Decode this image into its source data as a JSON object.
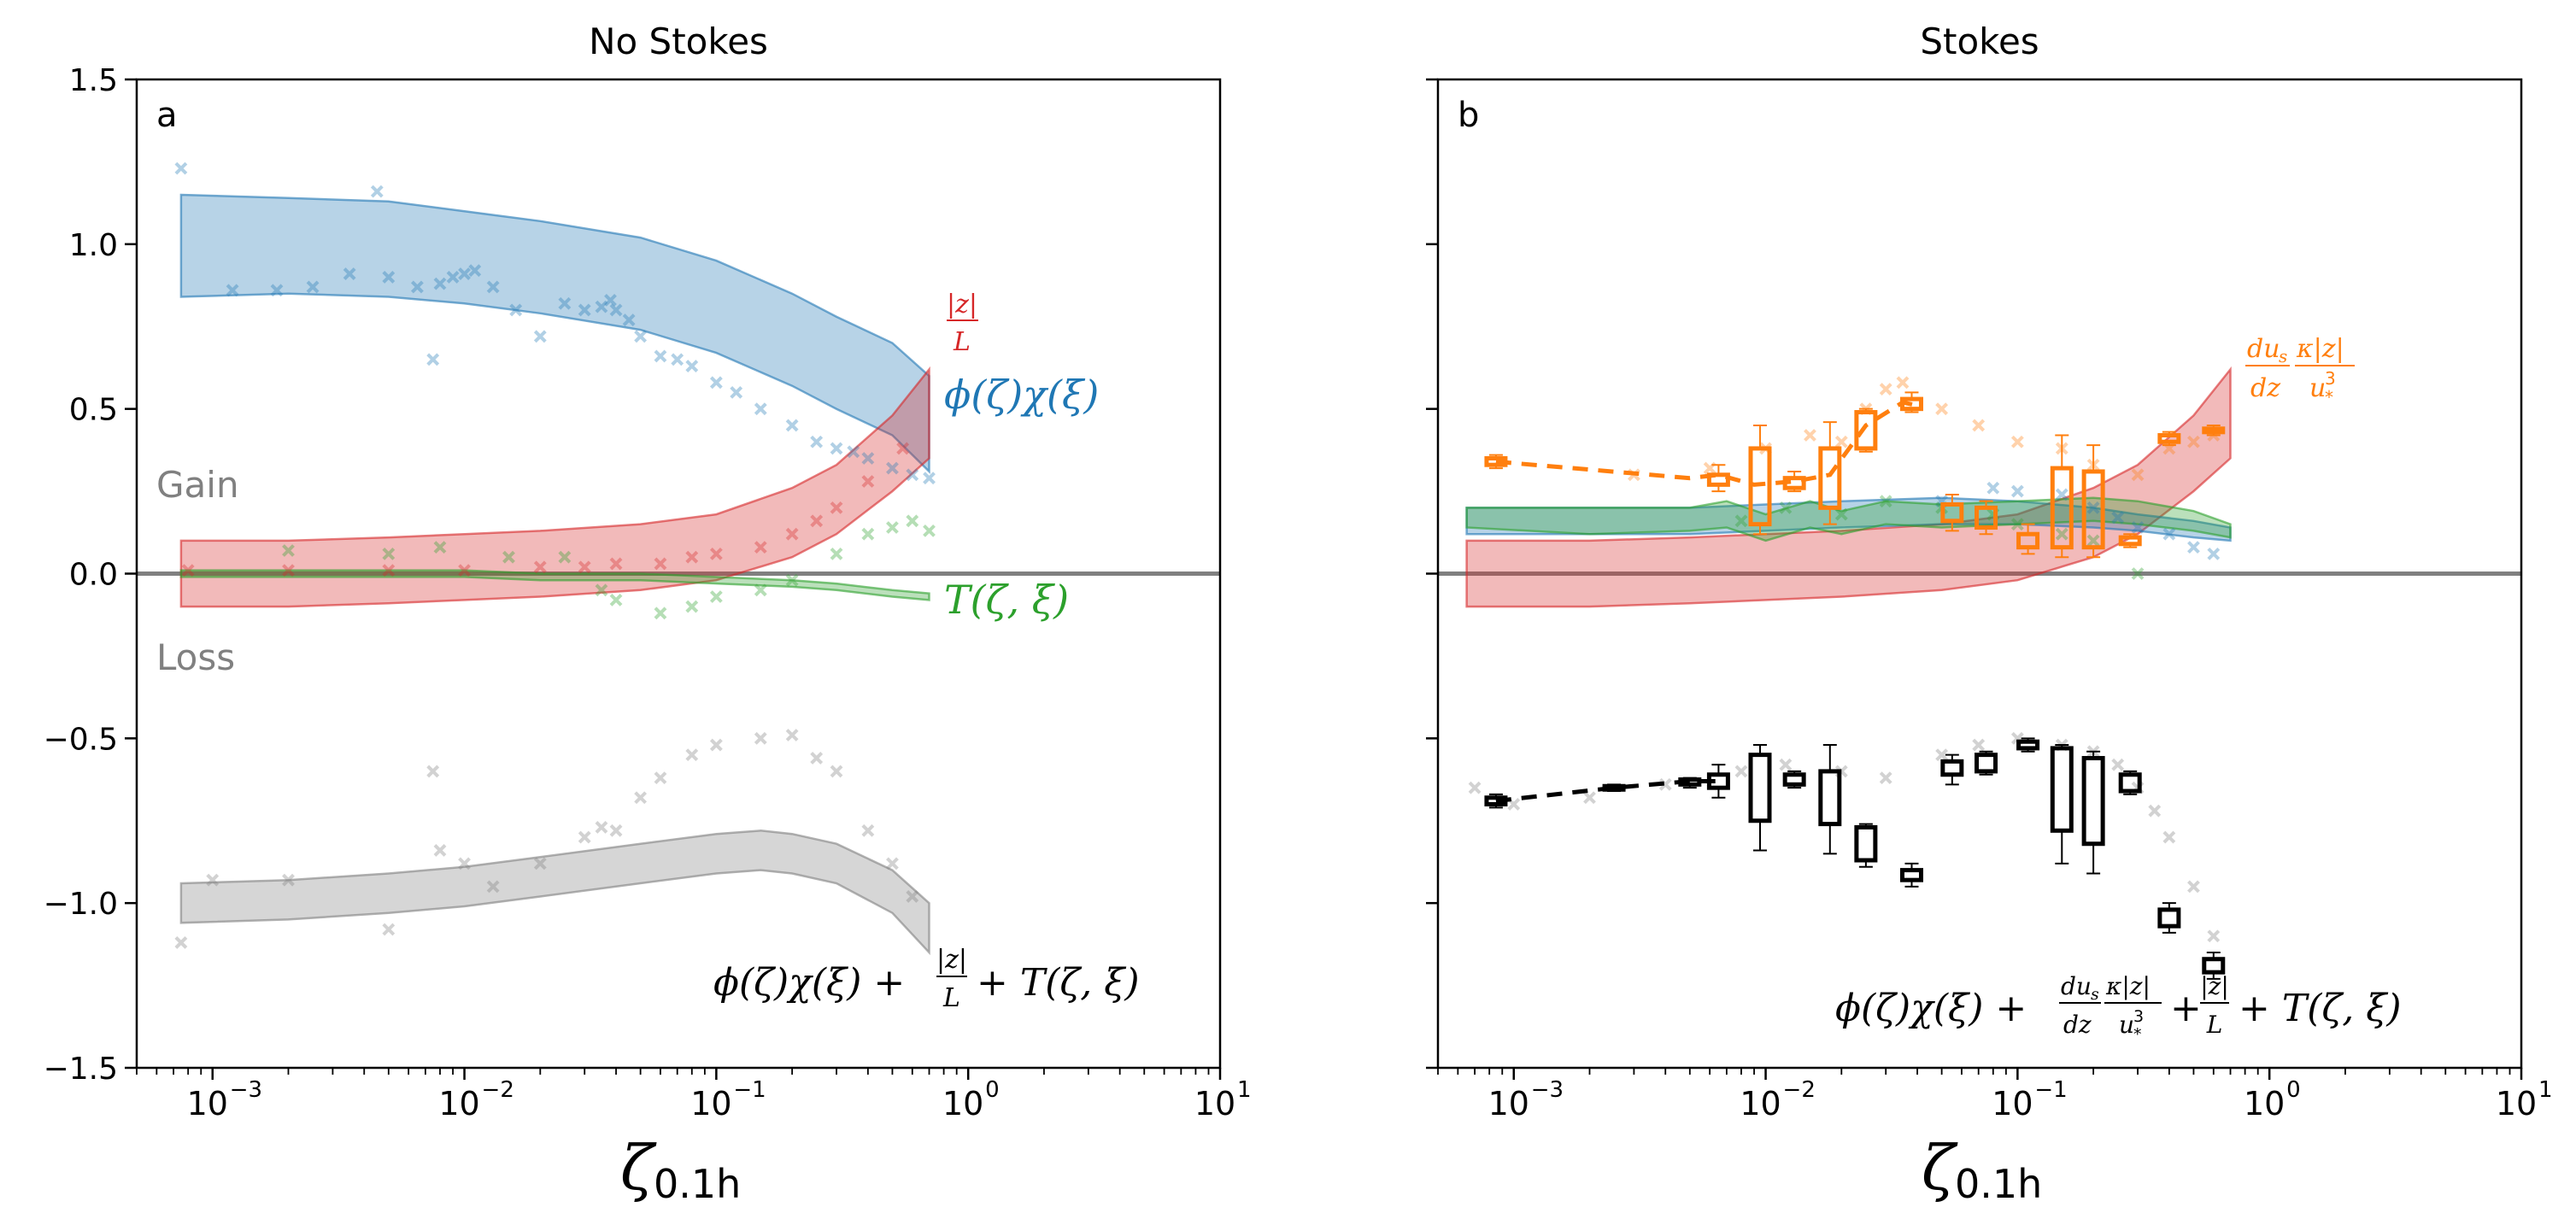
{
  "chart_data": [
    {
      "type": "scatter",
      "panel_letter": "a",
      "title": "No Stokes",
      "xlabel": "ζ",
      "xlabel_sub": "0.1h",
      "xscale": "log",
      "xlim": [
        0.0005,
        10
      ],
      "ylim": [
        -1.5,
        1.5
      ],
      "xticks": [
        0.001,
        0.01,
        0.1,
        1,
        10
      ],
      "xticklabels_base": [
        "10",
        "10",
        "10",
        "10",
        "10"
      ],
      "xticklabels_exp": [
        "−3",
        "−2",
        "−1",
        "0",
        "1"
      ],
      "yticks": [
        -1.5,
        -1.0,
        -0.5,
        0.0,
        0.5,
        1.0,
        1.5
      ],
      "yticklabels": [
        "−1.5",
        "−1.0",
        "−0.5",
        "0.0",
        "0.5",
        "1.0",
        "1.5"
      ],
      "gain_label": "Gain",
      "loss_label": "Loss",
      "series": [
        {
          "name": "ϕ(ζ)χ(ξ)",
          "color": "#1f77b4",
          "band_x": [
            0.00075,
            0.002,
            0.005,
            0.01,
            0.02,
            0.05,
            0.1,
            0.2,
            0.3,
            0.5,
            0.7
          ],
          "band_lower": [
            0.84,
            0.85,
            0.84,
            0.82,
            0.79,
            0.74,
            0.67,
            0.57,
            0.5,
            0.42,
            0.31
          ],
          "band_upper": [
            1.15,
            1.14,
            1.13,
            1.1,
            1.07,
            1.02,
            0.95,
            0.85,
            0.78,
            0.7,
            0.6
          ],
          "points_x": [
            0.00075,
            0.0012,
            0.0018,
            0.0025,
            0.0035,
            0.0045,
            0.005,
            0.0065,
            0.0075,
            0.008,
            0.009,
            0.01,
            0.011,
            0.013,
            0.016,
            0.02,
            0.025,
            0.03,
            0.035,
            0.038,
            0.04,
            0.045,
            0.05,
            0.06,
            0.07,
            0.08,
            0.1,
            0.12,
            0.15,
            0.2,
            0.25,
            0.3,
            0.35,
            0.4,
            0.5,
            0.6,
            0.7
          ],
          "points_y": [
            1.23,
            0.86,
            0.86,
            0.87,
            0.91,
            1.16,
            0.9,
            0.87,
            0.65,
            0.88,
            0.9,
            0.91,
            0.92,
            0.87,
            0.8,
            0.72,
            0.82,
            0.8,
            0.81,
            0.83,
            0.8,
            0.77,
            0.72,
            0.66,
            0.65,
            0.63,
            0.58,
            0.55,
            0.5,
            0.45,
            0.4,
            0.38,
            0.37,
            0.35,
            0.32,
            0.3,
            0.29
          ]
        },
        {
          "name": "|z|/L",
          "color": "#d62728",
          "band_x": [
            0.00075,
            0.002,
            0.005,
            0.01,
            0.02,
            0.05,
            0.1,
            0.2,
            0.3,
            0.5,
            0.7
          ],
          "band_lower": [
            -0.1,
            -0.1,
            -0.09,
            -0.08,
            -0.07,
            -0.05,
            -0.02,
            0.05,
            0.12,
            0.25,
            0.35
          ],
          "band_upper": [
            0.1,
            0.1,
            0.11,
            0.12,
            0.13,
            0.15,
            0.18,
            0.26,
            0.33,
            0.48,
            0.62
          ],
          "points_x": [
            0.0008,
            0.002,
            0.005,
            0.01,
            0.02,
            0.03,
            0.04,
            0.06,
            0.08,
            0.1,
            0.15,
            0.2,
            0.25,
            0.3,
            0.4,
            0.55
          ],
          "points_y": [
            0.01,
            0.01,
            0.01,
            0.01,
            0.02,
            0.02,
            0.03,
            0.03,
            0.05,
            0.06,
            0.08,
            0.12,
            0.16,
            0.2,
            0.28,
            0.38
          ]
        },
        {
          "name": "T(ζ,ξ)",
          "color": "#2ca02c",
          "band_x": [
            0.00075,
            0.002,
            0.005,
            0.01,
            0.02,
            0.05,
            0.1,
            0.2,
            0.3,
            0.5,
            0.7
          ],
          "band_lower": [
            -0.01,
            -0.01,
            -0.01,
            -0.01,
            -0.02,
            -0.02,
            -0.03,
            -0.04,
            -0.05,
            -0.07,
            -0.08
          ],
          "band_upper": [
            0.01,
            0.01,
            0.01,
            0.01,
            0.0,
            0.0,
            -0.01,
            -0.02,
            -0.03,
            -0.05,
            -0.06
          ],
          "points_x": [
            0.002,
            0.005,
            0.008,
            0.015,
            0.025,
            0.035,
            0.04,
            0.06,
            0.08,
            0.1,
            0.15,
            0.2,
            0.3,
            0.4,
            0.5,
            0.6,
            0.7
          ],
          "points_y": [
            0.07,
            0.06,
            0.08,
            0.05,
            0.05,
            -0.05,
            -0.08,
            -0.12,
            -0.1,
            -0.07,
            -0.05,
            -0.02,
            0.06,
            0.12,
            0.14,
            0.16,
            0.13
          ]
        },
        {
          "name": "ϕ(ζ)χ(ξ) + |z|/L + T(ζ,ξ)",
          "color": "#7f7f7f",
          "band_x": [
            0.00075,
            0.002,
            0.005,
            0.01,
            0.02,
            0.05,
            0.1,
            0.15,
            0.2,
            0.3,
            0.5,
            0.7
          ],
          "band_lower": [
            -1.06,
            -1.05,
            -1.03,
            -1.01,
            -0.98,
            -0.94,
            -0.91,
            -0.9,
            -0.91,
            -0.94,
            -1.03,
            -1.15
          ],
          "band_upper": [
            -0.94,
            -0.93,
            -0.91,
            -0.89,
            -0.86,
            -0.82,
            -0.79,
            -0.78,
            -0.79,
            -0.82,
            -0.9,
            -1.0
          ],
          "points_x": [
            0.00075,
            0.001,
            0.002,
            0.005,
            0.0075,
            0.008,
            0.01,
            0.013,
            0.02,
            0.03,
            0.035,
            0.04,
            0.05,
            0.06,
            0.08,
            0.1,
            0.15,
            0.2,
            0.25,
            0.3,
            0.4,
            0.5,
            0.6
          ],
          "points_y": [
            -1.12,
            -0.93,
            -0.93,
            -1.08,
            -0.6,
            -0.84,
            -0.88,
            -0.95,
            -0.88,
            -0.8,
            -0.77,
            -0.78,
            -0.68,
            -0.62,
            -0.55,
            -0.52,
            -0.5,
            -0.49,
            -0.56,
            -0.6,
            -0.78,
            -0.88,
            -0.98
          ]
        }
      ],
      "annotations": {
        "phichi": "ϕ(ζ)χ(ξ)",
        "zL_num": "|z|",
        "zL_den": "L",
        "T": "T(ζ, ξ)",
        "sum_a_part1": "ϕ(ζ)χ(ξ) +",
        "sum_a_part2": "+ T(ζ, ξ)"
      }
    },
    {
      "type": "scatter",
      "panel_letter": "b",
      "title": "Stokes",
      "xlabel": "ζ",
      "xlabel_sub": "0.1h",
      "xscale": "log",
      "xlim": [
        0.0005,
        10
      ],
      "ylim": [
        -1.5,
        1.5
      ],
      "xticks": [
        0.001,
        0.01,
        0.1,
        1,
        10
      ],
      "xticklabels_base": [
        "10",
        "10",
        "10",
        "10",
        "10"
      ],
      "xticklabels_exp": [
        "−3",
        "−2",
        "−1",
        "0",
        "1"
      ],
      "series": [
        {
          "name": "|z|/L",
          "color": "#d62728",
          "band_x": [
            0.00065,
            0.002,
            0.005,
            0.01,
            0.02,
            0.05,
            0.1,
            0.2,
            0.3,
            0.5,
            0.7
          ],
          "band_lower": [
            -0.1,
            -0.1,
            -0.09,
            -0.08,
            -0.07,
            -0.05,
            -0.02,
            0.05,
            0.12,
            0.25,
            0.35
          ],
          "band_upper": [
            0.1,
            0.1,
            0.11,
            0.12,
            0.13,
            0.15,
            0.18,
            0.26,
            0.33,
            0.48,
            0.62
          ]
        },
        {
          "name": "ϕ(ζ)χ(ξ)",
          "color": "#1f77b4",
          "band_x": [
            0.00065,
            0.002,
            0.005,
            0.01,
            0.02,
            0.05,
            0.1,
            0.2,
            0.3,
            0.5,
            0.7
          ],
          "band_lower": [
            0.12,
            0.12,
            0.12,
            0.13,
            0.14,
            0.15,
            0.15,
            0.14,
            0.13,
            0.11,
            0.1
          ],
          "band_upper": [
            0.2,
            0.2,
            0.2,
            0.21,
            0.22,
            0.23,
            0.22,
            0.2,
            0.18,
            0.16,
            0.14
          ]
        },
        {
          "name": "T(ζ,ξ)",
          "color": "#2ca02c",
          "band_x": [
            0.00065,
            0.002,
            0.005,
            0.007,
            0.01,
            0.015,
            0.02,
            0.03,
            0.05,
            0.1,
            0.2,
            0.3,
            0.5,
            0.7
          ],
          "band_lower": [
            0.14,
            0.12,
            0.13,
            0.14,
            0.1,
            0.14,
            0.12,
            0.15,
            0.14,
            0.15,
            0.16,
            0.15,
            0.13,
            0.11
          ],
          "band_upper": [
            0.2,
            0.2,
            0.2,
            0.22,
            0.18,
            0.22,
            0.19,
            0.22,
            0.21,
            0.22,
            0.23,
            0.22,
            0.19,
            0.15
          ]
        },
        {
          "name": "du_s/dz κ|z|/u*³",
          "color": "#ff7f0e",
          "line_x": [
            0.00085,
            0.005,
            0.0065,
            0.009,
            0.013,
            0.018,
            0.025,
            0.035,
            0.04
          ],
          "line_y": [
            0.34,
            0.29,
            0.3,
            0.27,
            0.28,
            0.3,
            0.45,
            0.52,
            0.51
          ],
          "box_x": [
            0.00085,
            0.0065,
            0.0095,
            0.013,
            0.018,
            0.025,
            0.038,
            0.055,
            0.075,
            0.11,
            0.15,
            0.2,
            0.28,
            0.4,
            0.6
          ],
          "box_q1": [
            0.33,
            0.27,
            0.15,
            0.26,
            0.2,
            0.38,
            0.5,
            0.16,
            0.14,
            0.08,
            0.08,
            0.08,
            0.09,
            0.4,
            0.43
          ],
          "box_q3": [
            0.35,
            0.3,
            0.38,
            0.29,
            0.38,
            0.49,
            0.53,
            0.21,
            0.2,
            0.12,
            0.32,
            0.31,
            0.11,
            0.42,
            0.44
          ],
          "box_lo": [
            0.32,
            0.25,
            0.12,
            0.25,
            0.15,
            0.37,
            0.49,
            0.13,
            0.12,
            0.06,
            0.05,
            0.05,
            0.08,
            0.39,
            0.42
          ],
          "box_hi": [
            0.36,
            0.33,
            0.45,
            0.31,
            0.46,
            0.5,
            0.55,
            0.24,
            0.22,
            0.15,
            0.42,
            0.39,
            0.12,
            0.43,
            0.45
          ]
        },
        {
          "name": "ϕ(ζ)χ(ξ) + du_s/dz κ|z|/u*³ + |z|/L + T(ζ,ξ)",
          "color": "#000000",
          "line_x": [
            0.00085,
            0.0025,
            0.005,
            0.0065
          ],
          "line_y": [
            -0.69,
            -0.65,
            -0.63,
            -0.63
          ],
          "box_x": [
            0.00085,
            0.0025,
            0.005,
            0.0065,
            0.0095,
            0.013,
            0.018,
            0.025,
            0.038,
            0.055,
            0.075,
            0.11,
            0.15,
            0.2,
            0.28,
            0.4,
            0.6
          ],
          "box_q1": [
            -0.7,
            -0.655,
            -0.64,
            -0.65,
            -0.75,
            -0.64,
            -0.76,
            -0.87,
            -0.93,
            -0.61,
            -0.6,
            -0.53,
            -0.78,
            -0.82,
            -0.66,
            -1.07,
            -1.21
          ],
          "box_q3": [
            -0.68,
            -0.645,
            -0.625,
            -0.61,
            -0.55,
            -0.61,
            -0.6,
            -0.77,
            -0.9,
            -0.57,
            -0.55,
            -0.51,
            -0.53,
            -0.56,
            -0.61,
            -1.02,
            -1.17
          ],
          "box_lo": [
            -0.71,
            -0.66,
            -0.65,
            -0.68,
            -0.84,
            -0.65,
            -0.85,
            -0.89,
            -0.95,
            -0.64,
            -0.61,
            -0.54,
            -0.88,
            -0.91,
            -0.67,
            -1.09,
            -1.23
          ],
          "box_hi": [
            -0.67,
            -0.64,
            -0.62,
            -0.58,
            -0.52,
            -0.6,
            -0.52,
            -0.76,
            -0.88,
            -0.55,
            -0.54,
            -0.5,
            -0.52,
            -0.54,
            -0.6,
            -1.0,
            -1.15
          ]
        }
      ],
      "scatter_clouds": [
        {
          "color": "#ff7f0e",
          "points_x": [
            0.003,
            0.006,
            0.01,
            0.015,
            0.02,
            0.025,
            0.03,
            0.035,
            0.05,
            0.07,
            0.1,
            0.15,
            0.2,
            0.3,
            0.4,
            0.5,
            0.6
          ],
          "points_y": [
            0.3,
            0.32,
            0.38,
            0.42,
            0.4,
            0.5,
            0.56,
            0.58,
            0.5,
            0.45,
            0.4,
            0.38,
            0.33,
            0.3,
            0.38,
            0.4,
            0.42
          ]
        },
        {
          "color": "#1f77b4",
          "points_x": [
            0.05,
            0.08,
            0.1,
            0.15,
            0.2,
            0.25,
            0.3,
            0.4,
            0.5,
            0.6
          ],
          "points_y": [
            0.22,
            0.26,
            0.25,
            0.24,
            0.2,
            0.17,
            0.14,
            0.12,
            0.08,
            0.06
          ]
        },
        {
          "color": "#2ca02c",
          "points_x": [
            0.008,
            0.012,
            0.02,
            0.03,
            0.05,
            0.08,
            0.1,
            0.15,
            0.2,
            0.3
          ],
          "points_y": [
            0.16,
            0.2,
            0.18,
            0.22,
            0.2,
            0.18,
            0.15,
            0.12,
            0.1,
            0.0
          ]
        },
        {
          "color": "#7f7f7f",
          "points_x": [
            0.0007,
            0.001,
            0.002,
            0.004,
            0.008,
            0.012,
            0.02,
            0.03,
            0.05,
            0.07,
            0.1,
            0.15,
            0.2,
            0.25,
            0.3,
            0.35,
            0.4,
            0.5,
            0.6
          ],
          "points_y": [
            -0.65,
            -0.7,
            -0.68,
            -0.64,
            -0.6,
            -0.58,
            -0.6,
            -0.62,
            -0.55,
            -0.52,
            -0.5,
            -0.52,
            -0.54,
            -0.58,
            -0.65,
            -0.72,
            -0.8,
            -0.95,
            -1.1
          ]
        }
      ],
      "annotations": {
        "dus_num": "du",
        "dus_sub": "s",
        "dz": "dz",
        "kz": "κ|z|",
        "ustar": "u",
        "ustar_sub": "*",
        "ustar_sup": "3",
        "sum_b_part1": "ϕ(ζ)χ(ξ) +",
        "sum_b_part2": "+",
        "sum_b_part3": "+ T(ζ, ξ)",
        "zL_num": "|z|",
        "zL_den": "L"
      }
    }
  ]
}
